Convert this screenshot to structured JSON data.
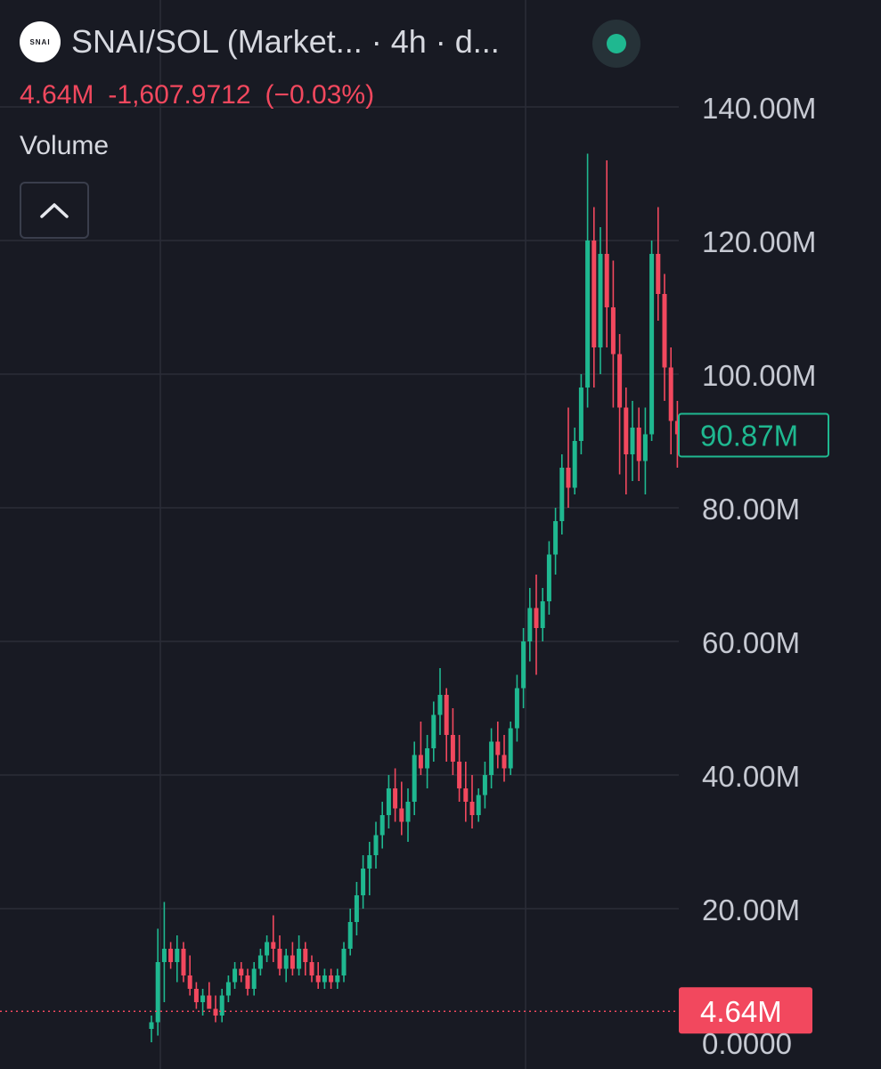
{
  "header": {
    "logo_text": "SNAI",
    "title": "SNAI/SOL (Market... · 4h · d...",
    "status_color": "#1fb890"
  },
  "legend": {
    "volume": "4.64M",
    "change": "-1,607.9712",
    "change_pct": "(−0.03%)",
    "color": "#f2485e"
  },
  "study": {
    "name": "Volume",
    "collapse_icon": "chevron-up-icon"
  },
  "chart_data": {
    "type": "candlestick",
    "title": "",
    "interval": "4h",
    "colors": {
      "up": "#1fb890",
      "down": "#f2485e",
      "background": "#181a23"
    },
    "y_axis": {
      "min": 0,
      "max": 140000000,
      "ticks": [
        {
          "value": 140000000,
          "label": "140.00M"
        },
        {
          "value": 120000000,
          "label": "120.00M"
        },
        {
          "value": 100000000,
          "label": "100.00M"
        },
        {
          "value": 80000000,
          "label": "80.00M"
        },
        {
          "value": 60000000,
          "label": "60.00M"
        },
        {
          "value": 40000000,
          "label": "40.00M"
        },
        {
          "value": 20000000,
          "label": "20.00M"
        },
        {
          "value": 0,
          "label": "0.0000"
        }
      ]
    },
    "last_price": {
      "value": 90870000,
      "label": "90.87M",
      "color": "#1fb890"
    },
    "current_volume": {
      "value": 4640000,
      "label": "4.64M",
      "color": "#f2485e"
    },
    "candles_millions": [
      [
        2,
        4,
        0,
        3
      ],
      [
        3,
        17,
        1,
        12
      ],
      [
        12,
        21,
        6,
        14
      ],
      [
        14,
        15,
        11,
        12
      ],
      [
        12,
        16,
        9,
        14
      ],
      [
        14,
        15,
        9,
        10
      ],
      [
        10,
        13,
        7,
        8
      ],
      [
        8,
        9,
        5,
        6
      ],
      [
        6,
        8,
        4,
        7
      ],
      [
        7,
        9,
        5,
        5
      ],
      [
        5,
        7,
        3,
        4
      ],
      [
        4,
        8,
        3,
        7
      ],
      [
        7,
        10,
        6,
        9
      ],
      [
        9,
        12,
        8,
        11
      ],
      [
        11,
        12,
        9,
        10
      ],
      [
        10,
        11,
        7,
        8
      ],
      [
        8,
        12,
        7,
        11
      ],
      [
        11,
        14,
        10,
        13
      ],
      [
        13,
        16,
        12,
        15
      ],
      [
        15,
        19,
        12,
        14
      ],
      [
        14,
        16,
        10,
        11
      ],
      [
        11,
        14,
        9,
        13
      ],
      [
        13,
        15,
        10,
        11
      ],
      [
        11,
        16,
        10,
        14
      ],
      [
        14,
        15,
        10,
        12
      ],
      [
        12,
        13,
        9,
        10
      ],
      [
        10,
        12,
        8,
        9
      ],
      [
        9,
        11,
        8,
        10
      ],
      [
        10,
        11,
        8,
        9
      ],
      [
        9,
        11,
        8,
        10
      ],
      [
        10,
        15,
        9,
        14
      ],
      [
        14,
        20,
        13,
        18
      ],
      [
        18,
        24,
        16,
        22
      ],
      [
        22,
        28,
        20,
        26
      ],
      [
        26,
        30,
        22,
        28
      ],
      [
        28,
        33,
        26,
        31
      ],
      [
        31,
        36,
        29,
        34
      ],
      [
        34,
        40,
        32,
        38
      ],
      [
        38,
        41,
        33,
        35
      ],
      [
        35,
        39,
        31,
        33
      ],
      [
        33,
        38,
        30,
        36
      ],
      [
        36,
        45,
        34,
        43
      ],
      [
        43,
        48,
        40,
        41
      ],
      [
        41,
        46,
        38,
        44
      ],
      [
        44,
        51,
        42,
        49
      ],
      [
        49,
        56,
        46,
        52
      ],
      [
        52,
        53,
        42,
        46
      ],
      [
        46,
        50,
        40,
        42
      ],
      [
        42,
        46,
        36,
        38
      ],
      [
        38,
        42,
        33,
        36
      ],
      [
        36,
        40,
        32,
        34
      ],
      [
        34,
        38,
        33,
        37
      ],
      [
        37,
        42,
        35,
        40
      ],
      [
        40,
        47,
        38,
        45
      ],
      [
        45,
        48,
        41,
        43
      ],
      [
        43,
        46,
        39,
        41
      ],
      [
        41,
        48,
        40,
        47
      ],
      [
        47,
        55,
        45,
        53
      ],
      [
        53,
        62,
        50,
        60
      ],
      [
        60,
        68,
        57,
        65
      ],
      [
        65,
        70,
        55,
        62
      ],
      [
        62,
        68,
        60,
        66
      ],
      [
        66,
        75,
        64,
        73
      ],
      [
        73,
        80,
        70,
        78
      ],
      [
        78,
        88,
        76,
        86
      ],
      [
        86,
        95,
        80,
        83
      ],
      [
        83,
        92,
        82,
        90
      ],
      [
        90,
        100,
        88,
        98
      ],
      [
        98,
        133,
        95,
        120
      ],
      [
        120,
        125,
        98,
        104
      ],
      [
        104,
        122,
        100,
        118
      ],
      [
        118,
        132,
        104,
        110
      ],
      [
        110,
        117,
        95,
        103
      ],
      [
        103,
        106,
        85,
        95
      ],
      [
        95,
        98,
        82,
        88
      ],
      [
        88,
        96,
        84,
        92
      ],
      [
        92,
        95,
        84,
        87
      ],
      [
        87,
        95,
        82,
        91
      ],
      [
        91,
        120,
        90,
        118
      ],
      [
        118,
        125,
        108,
        112
      ],
      [
        112,
        115,
        96,
        101
      ],
      [
        101,
        104,
        88,
        93
      ],
      [
        93,
        96,
        86,
        91
      ]
    ]
  }
}
